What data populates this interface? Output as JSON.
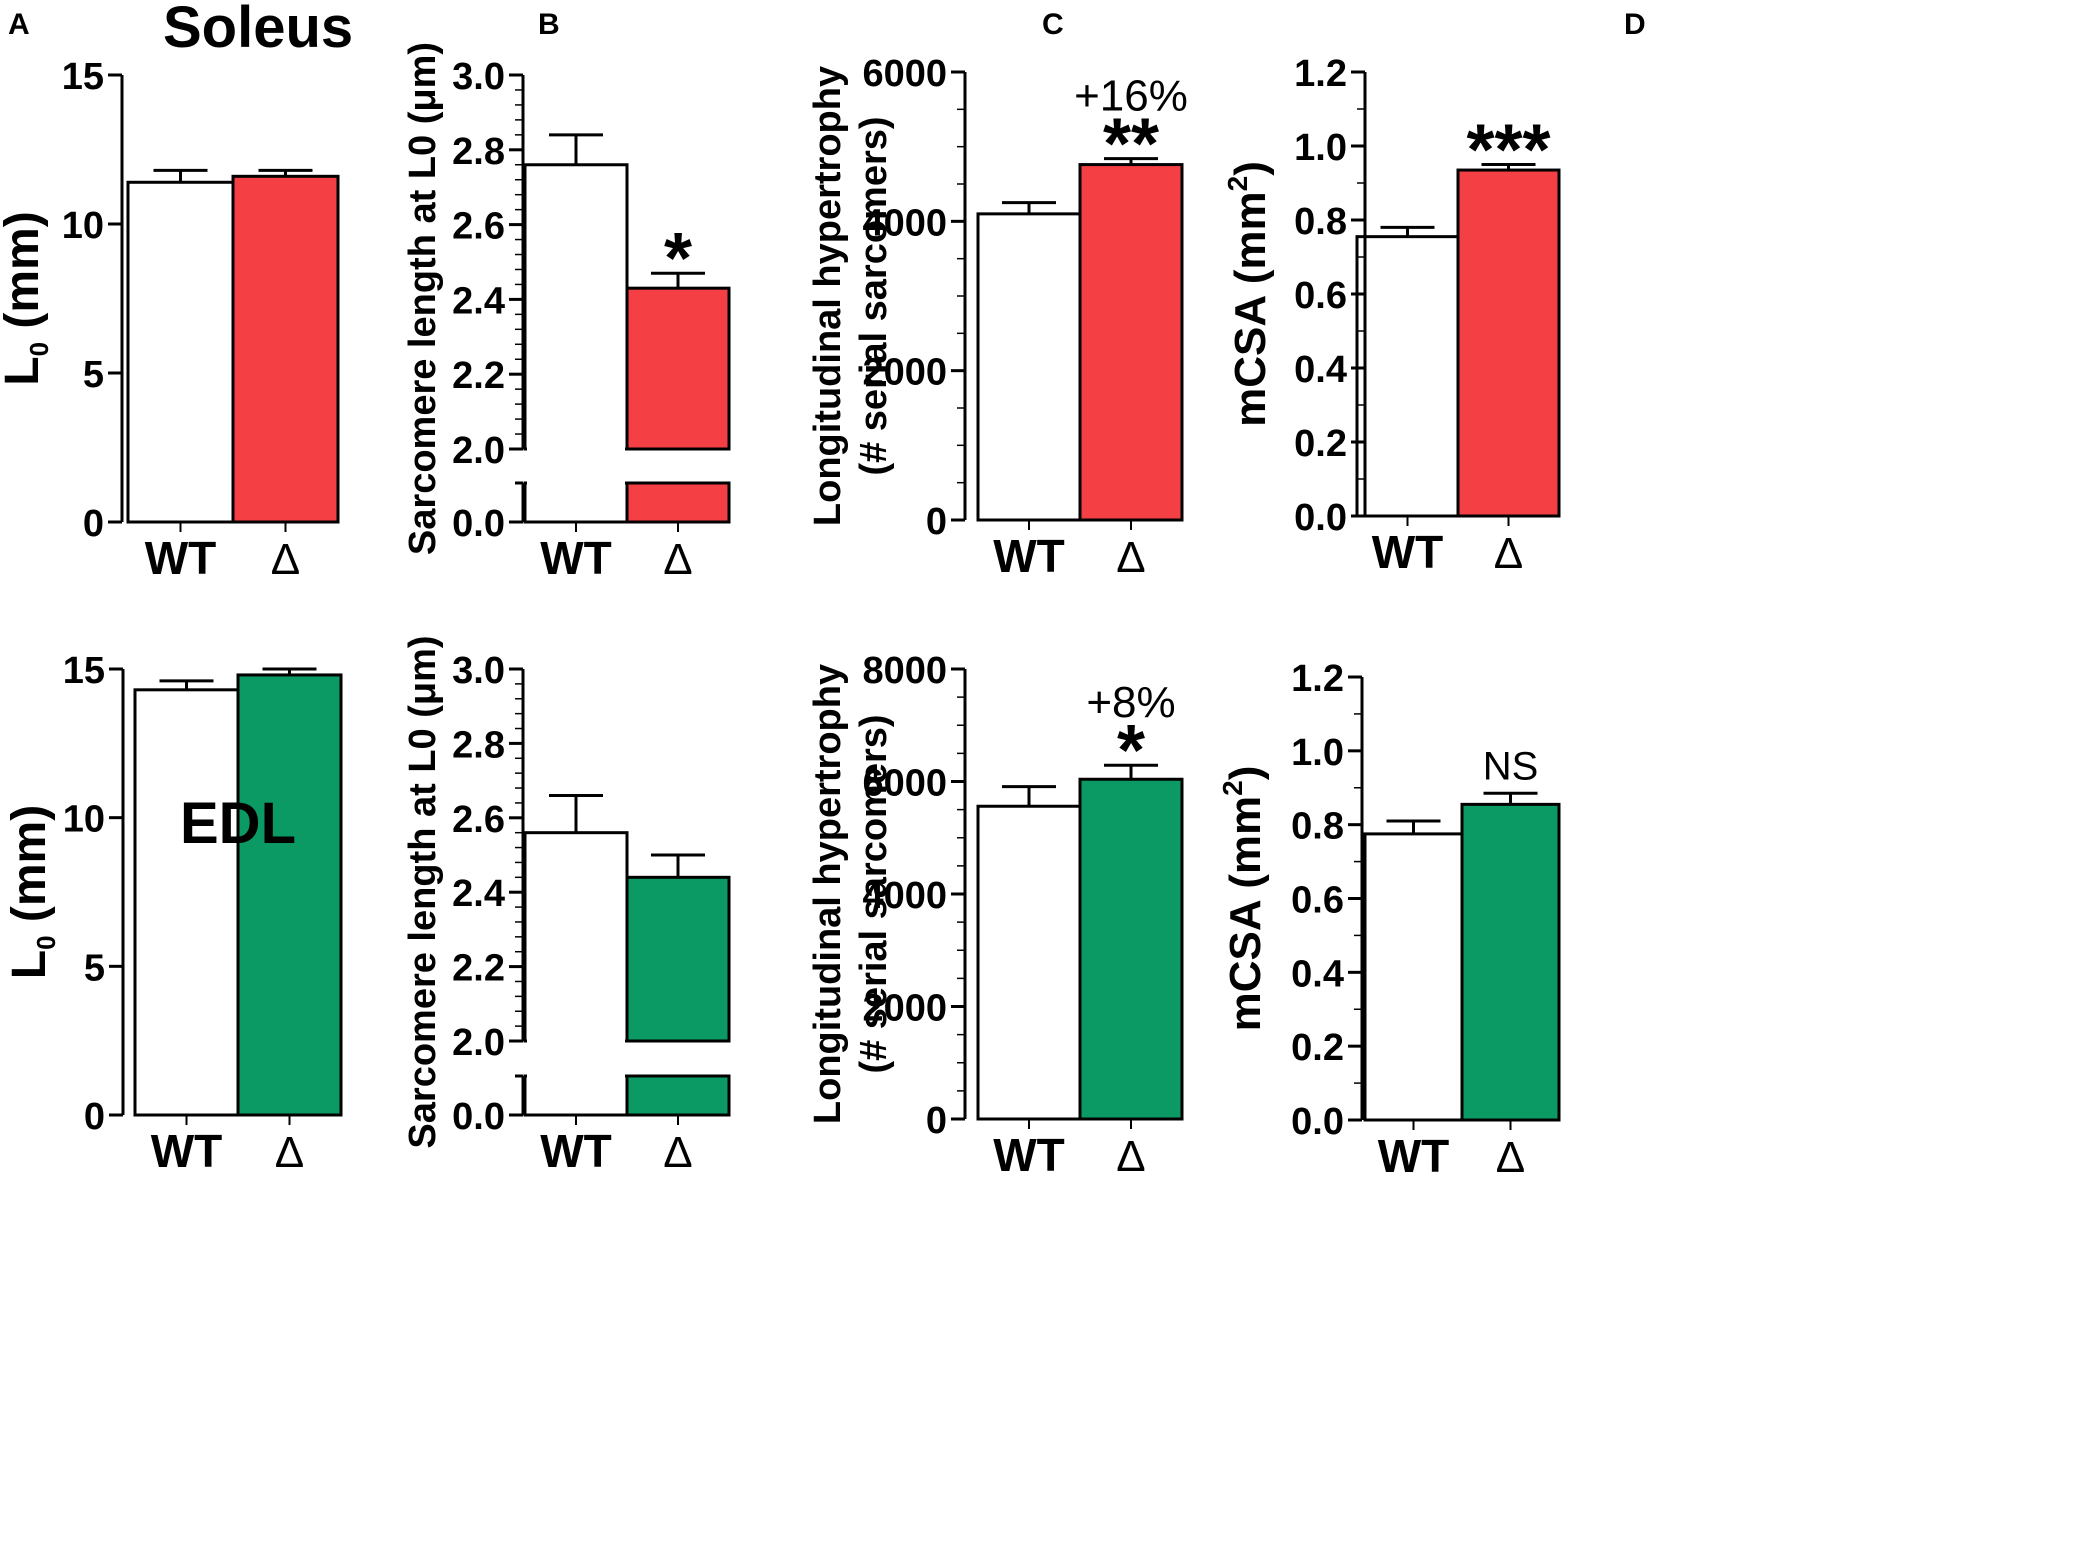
{
  "panel_letters": [
    "A",
    "B",
    "C",
    "D"
  ],
  "muscles": {
    "top": "Soleus",
    "bottom": "EDL"
  },
  "colors": {
    "soleus": "#f44044",
    "edl": "#0b9a63",
    "wt": "#ffffff",
    "axis": "#000000"
  },
  "chart_data": [
    {
      "id": "soleus-l0",
      "type": "bar",
      "panel": "A",
      "muscle": "Soleus",
      "ylabel": "L0 (mm)",
      "ylabel_main": "L",
      "ylabel_sub": "0",
      "ylabel_rest": " (mm)",
      "categories": [
        "WT",
        "Δ"
      ],
      "values": [
        11.4,
        11.6
      ],
      "errors": [
        0.4,
        0.2
      ],
      "ylim": [
        0,
        15
      ],
      "yticks": [
        "0",
        "5",
        "10",
        "15"
      ],
      "ytick_values": [
        0,
        5,
        10,
        15
      ],
      "minor_step": 0,
      "annotation": "",
      "percent": "",
      "break": false
    },
    {
      "id": "soleus-sl",
      "type": "bar",
      "panel": "B",
      "muscle": "Soleus",
      "ylabel": "Sarcomere length at L0 (μm)",
      "categories": [
        "WT",
        "Δ"
      ],
      "values": [
        2.76,
        2.43
      ],
      "errors": [
        0.08,
        0.04
      ],
      "ylim": [
        0,
        3.0
      ],
      "yticks": [
        "0.0",
        "2.0",
        "2.2",
        "2.4",
        "2.6",
        "2.8",
        "3.0"
      ],
      "ytick_values": [
        0.0,
        2.0,
        2.2,
        2.4,
        2.6,
        2.8,
        3.0
      ],
      "minor_step": 0.04,
      "annotation": "*",
      "percent": "",
      "break": true,
      "break_low": [
        0,
        0.1
      ],
      "break_high": [
        2.0,
        3.0
      ]
    },
    {
      "id": "soleus-serial",
      "type": "bar",
      "panel": "C",
      "muscle": "Soleus",
      "ylabel": "Longitudinal hypertrophy",
      "ylabel2": "(# serial sarcomers)",
      "categories": [
        "WT",
        "Δ"
      ],
      "values": [
        4100,
        4760
      ],
      "errors": [
        150,
        80
      ],
      "ylim": [
        0,
        6000
      ],
      "yticks": [
        "0",
        "2000",
        "4000",
        "6000"
      ],
      "ytick_values": [
        0,
        2000,
        4000,
        6000
      ],
      "minor_step": 500,
      "annotation": "**",
      "percent": "+16%",
      "break": false
    },
    {
      "id": "soleus-mcsa",
      "type": "bar",
      "panel": "D",
      "muscle": "Soleus",
      "ylabel": "mCSA (mm2)",
      "ylabel_main": "mCSA (mm",
      "ylabel_sup": "2",
      "ylabel_rest": ")",
      "categories": [
        "WT",
        "Δ"
      ],
      "values": [
        0.755,
        0.935
      ],
      "errors": [
        0.025,
        0.015
      ],
      "ylim": [
        0,
        1.2
      ],
      "yticks": [
        "0.0",
        "0.2",
        "0.4",
        "0.6",
        "0.8",
        "1.0",
        "1.2"
      ],
      "ytick_values": [
        0.0,
        0.2,
        0.4,
        0.6,
        0.8,
        1.0,
        1.2
      ],
      "minor_step": 0.1,
      "annotation": "***",
      "percent": "",
      "break": false
    },
    {
      "id": "edl-l0",
      "type": "bar",
      "panel": "A",
      "muscle": "EDL",
      "ylabel": "L0 (mm)",
      "ylabel_main": "L",
      "ylabel_sub": "0",
      "ylabel_rest": " (mm)",
      "categories": [
        "WT",
        "Δ"
      ],
      "values": [
        14.3,
        14.8
      ],
      "errors": [
        0.3,
        0.2
      ],
      "ylim": [
        0,
        15
      ],
      "yticks": [
        "0",
        "5",
        "10",
        "15"
      ],
      "ytick_values": [
        0,
        5,
        10,
        15
      ],
      "minor_step": 0,
      "annotation": "",
      "percent": "",
      "break": false
    },
    {
      "id": "edl-sl",
      "type": "bar",
      "panel": "B",
      "muscle": "EDL",
      "ylabel": "Sarcomere length at L0 (μm)",
      "categories": [
        "WT",
        "Δ"
      ],
      "values": [
        2.56,
        2.44
      ],
      "errors": [
        0.1,
        0.06
      ],
      "ylim": [
        0,
        3.0
      ],
      "yticks": [
        "0.0",
        "2.0",
        "2.2",
        "2.4",
        "2.6",
        "2.8",
        "3.0"
      ],
      "ytick_values": [
        0.0,
        2.0,
        2.2,
        2.4,
        2.6,
        2.8,
        3.0
      ],
      "minor_step": 0.04,
      "annotation": "",
      "percent": "",
      "break": true,
      "break_low": [
        0,
        0.1
      ],
      "break_high": [
        2.0,
        3.0
      ]
    },
    {
      "id": "edl-serial",
      "type": "bar",
      "panel": "C",
      "muscle": "EDL",
      "ylabel": "Longitudinal hypertrophy",
      "ylabel2": "(# serial sarcomers)",
      "categories": [
        "WT",
        "Δ"
      ],
      "values": [
        5560,
        6040
      ],
      "errors": [
        350,
        250
      ],
      "ylim": [
        0,
        8000
      ],
      "yticks": [
        "0",
        "2000",
        "4000",
        "6000",
        "8000"
      ],
      "ytick_values": [
        0,
        2000,
        4000,
        6000,
        8000
      ],
      "minor_step": 500,
      "annotation": "*",
      "percent": "+8%",
      "break": false
    },
    {
      "id": "edl-mcsa",
      "type": "bar",
      "panel": "D",
      "muscle": "EDL",
      "ylabel": "mCSA (mm2)",
      "ylabel_main": "mCSA (mm",
      "ylabel_sup": "2",
      "ylabel_rest": ")",
      "categories": [
        "WT",
        "Δ"
      ],
      "values": [
        0.775,
        0.855
      ],
      "errors": [
        0.035,
        0.03
      ],
      "ylim": [
        0,
        1.2
      ],
      "yticks": [
        "0.0",
        "0.2",
        "0.4",
        "0.6",
        "0.8",
        "1.0",
        "1.2"
      ],
      "ytick_values": [
        0.0,
        0.2,
        0.4,
        0.6,
        0.8,
        1.0,
        1.2
      ],
      "minor_step": 0.1,
      "annotation": "NS",
      "percent": "",
      "break": false
    }
  ]
}
